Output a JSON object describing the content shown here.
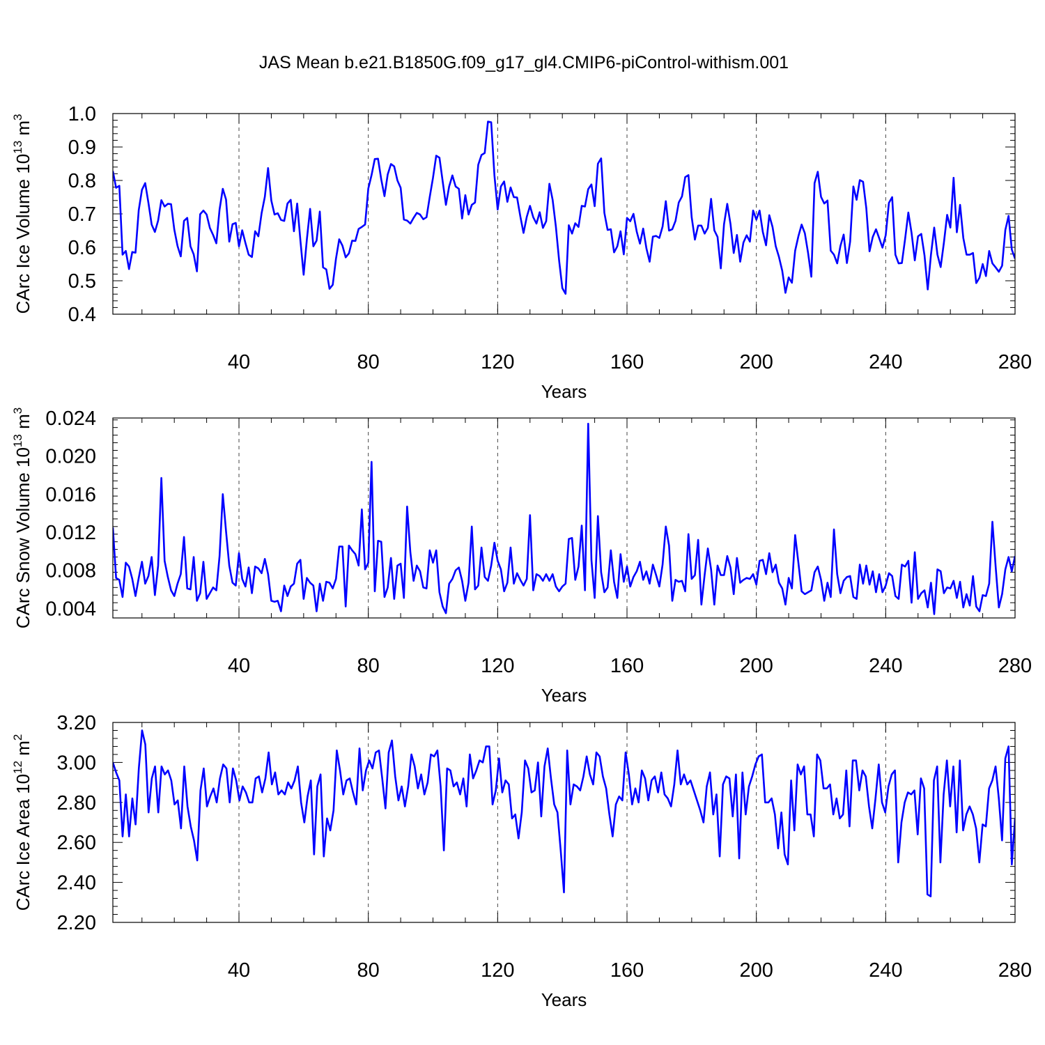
{
  "figure": {
    "title": "JAS Mean b.e21.B1850G.f09_g17_gl4.CMIP6-piControl-withism.001"
  },
  "chart_data": [
    {
      "type": "line",
      "title": "",
      "xlabel": "Years",
      "ylabel": "CArc Ice Volume 10",
      "ylabel_sup1": "13",
      "ylabel_unit": " m",
      "ylabel_sup2": "3",
      "xlim": [
        1,
        280
      ],
      "ylim": [
        0.4,
        1.0
      ],
      "x_ticks": [
        40,
        80,
        120,
        160,
        200,
        240,
        280
      ],
      "x_tick_labels": [
        "40",
        "80",
        "120",
        "160",
        "200",
        "240",
        "280"
      ],
      "y_ticks": [
        0.4,
        0.5,
        0.6,
        0.7,
        0.8,
        0.9,
        1.0
      ],
      "y_tick_labels": [
        "0.4",
        "0.5",
        "0.6",
        "0.7",
        "0.8",
        "0.9",
        "1.0"
      ],
      "grid": "vertical dashed at major x ticks",
      "color": "#0000ff",
      "values": [
        0.828,
        0.778,
        0.784,
        0.578,
        0.589,
        0.535,
        0.586,
        0.584,
        0.711,
        0.772,
        0.792,
        0.733,
        0.668,
        0.646,
        0.68,
        0.741,
        0.722,
        0.73,
        0.729,
        0.653,
        0.604,
        0.573,
        0.679,
        0.688,
        0.603,
        0.579,
        0.528,
        0.699,
        0.71,
        0.698,
        0.658,
        0.637,
        0.612,
        0.713,
        0.775,
        0.743,
        0.617,
        0.669,
        0.673,
        0.603,
        0.651,
        0.613,
        0.578,
        0.571,
        0.648,
        0.633,
        0.702,
        0.751,
        0.837,
        0.74,
        0.698,
        0.702,
        0.682,
        0.679,
        0.731,
        0.742,
        0.648,
        0.731,
        0.62,
        0.518,
        0.624,
        0.715,
        0.603,
        0.62,
        0.707,
        0.54,
        0.534,
        0.476,
        0.488,
        0.566,
        0.624,
        0.605,
        0.57,
        0.582,
        0.62,
        0.619,
        0.655,
        0.661,
        0.668,
        0.776,
        0.816,
        0.864,
        0.865,
        0.803,
        0.753,
        0.818,
        0.849,
        0.842,
        0.8,
        0.778,
        0.683,
        0.68,
        0.671,
        0.688,
        0.703,
        0.698,
        0.684,
        0.69,
        0.751,
        0.808,
        0.874,
        0.868,
        0.797,
        0.727,
        0.782,
        0.815,
        0.782,
        0.775,
        0.686,
        0.756,
        0.698,
        0.727,
        0.734,
        0.847,
        0.876,
        0.882,
        0.976,
        0.974,
        0.815,
        0.713,
        0.782,
        0.797,
        0.736,
        0.779,
        0.75,
        0.749,
        0.693,
        0.643,
        0.691,
        0.724,
        0.69,
        0.671,
        0.705,
        0.658,
        0.678,
        0.79,
        0.742,
        0.662,
        0.561,
        0.478,
        0.461,
        0.666,
        0.641,
        0.672,
        0.661,
        0.724,
        0.722,
        0.774,
        0.788,
        0.723,
        0.85,
        0.866,
        0.703,
        0.652,
        0.654,
        0.585,
        0.603,
        0.648,
        0.579,
        0.688,
        0.678,
        0.7,
        0.647,
        0.611,
        0.656,
        0.597,
        0.557,
        0.632,
        0.634,
        0.628,
        0.662,
        0.738,
        0.65,
        0.654,
        0.679,
        0.734,
        0.752,
        0.81,
        0.816,
        0.69,
        0.623,
        0.665,
        0.665,
        0.641,
        0.658,
        0.745,
        0.651,
        0.631,
        0.537,
        0.669,
        0.73,
        0.67,
        0.583,
        0.637,
        0.557,
        0.614,
        0.636,
        0.617,
        0.71,
        0.683,
        0.71,
        0.646,
        0.606,
        0.696,
        0.661,
        0.603,
        0.571,
        0.53,
        0.464,
        0.51,
        0.494,
        0.59,
        0.633,
        0.668,
        0.642,
        0.583,
        0.512,
        0.792,
        0.826,
        0.751,
        0.731,
        0.74,
        0.59,
        0.578,
        0.552,
        0.604,
        0.638,
        0.553,
        0.617,
        0.782,
        0.742,
        0.801,
        0.796,
        0.717,
        0.588,
        0.631,
        0.654,
        0.627,
        0.599,
        0.636,
        0.733,
        0.75,
        0.578,
        0.552,
        0.553,
        0.625,
        0.704,
        0.643,
        0.561,
        0.633,
        0.64,
        0.576,
        0.474,
        0.578,
        0.659,
        0.578,
        0.541,
        0.614,
        0.697,
        0.659,
        0.808,
        0.645,
        0.727,
        0.628,
        0.578,
        0.578,
        0.583,
        0.493,
        0.509,
        0.55,
        0.514,
        0.589,
        0.552,
        0.54,
        0.527,
        0.545,
        0.652,
        0.694,
        0.593,
        0.566
      ]
    },
    {
      "type": "line",
      "title": "",
      "xlabel": "Years",
      "ylabel": "CArc Snow Volume 10",
      "ylabel_sup1": "13",
      "ylabel_unit": " m",
      "ylabel_sup2": "3",
      "xlim": [
        1,
        280
      ],
      "ylim": [
        0.003,
        0.024
      ],
      "x_ticks": [
        40,
        80,
        120,
        160,
        200,
        240,
        280
      ],
      "x_tick_labels": [
        "40",
        "80",
        "120",
        "160",
        "200",
        "240",
        "280"
      ],
      "y_ticks": [
        0.004,
        0.008,
        0.012,
        0.016,
        0.02,
        0.024
      ],
      "y_tick_labels": [
        "0.004",
        "0.008",
        "0.012",
        "0.016",
        "0.020",
        "0.024"
      ],
      "grid": "vertical dashed at major x ticks",
      "color": "#0000ff",
      "values": [
        0.0125,
        0.0072,
        0.007,
        0.0052,
        0.0088,
        0.0084,
        0.0071,
        0.0053,
        0.0072,
        0.0089,
        0.0066,
        0.0074,
        0.0094,
        0.0054,
        0.0085,
        0.0177,
        0.009,
        0.0073,
        0.0059,
        0.0053,
        0.0066,
        0.0076,
        0.0115,
        0.0061,
        0.006,
        0.0094,
        0.0048,
        0.0056,
        0.0089,
        0.005,
        0.0056,
        0.0062,
        0.0059,
        0.0095,
        0.016,
        0.0121,
        0.0085,
        0.0067,
        0.0064,
        0.0098,
        0.0071,
        0.0063,
        0.0083,
        0.0056,
        0.0084,
        0.0082,
        0.0077,
        0.0092,
        0.0076,
        0.0048,
        0.0047,
        0.0048,
        0.0037,
        0.0064,
        0.0053,
        0.0063,
        0.0066,
        0.0087,
        0.0091,
        0.005,
        0.0072,
        0.0067,
        0.0064,
        0.0037,
        0.0066,
        0.0048,
        0.0068,
        0.0067,
        0.0061,
        0.0071,
        0.0105,
        0.0105,
        0.0042,
        0.0106,
        0.0101,
        0.0097,
        0.0085,
        0.0144,
        0.0081,
        0.0088,
        0.0194,
        0.0058,
        0.0111,
        0.011,
        0.0052,
        0.0062,
        0.0093,
        0.005,
        0.0085,
        0.0087,
        0.0051,
        0.0147,
        0.0099,
        0.0069,
        0.0085,
        0.0079,
        0.0062,
        0.0061,
        0.0101,
        0.0088,
        0.0101,
        0.0057,
        0.0042,
        0.0035,
        0.0066,
        0.0071,
        0.008,
        0.0083,
        0.0069,
        0.0048,
        0.0067,
        0.0126,
        0.006,
        0.0064,
        0.0104,
        0.0073,
        0.0069,
        0.0085,
        0.0109,
        0.009,
        0.0081,
        0.0058,
        0.0067,
        0.0104,
        0.0066,
        0.0077,
        0.007,
        0.0064,
        0.0071,
        0.0138,
        0.0059,
        0.0076,
        0.0074,
        0.0069,
        0.0076,
        0.0069,
        0.0076,
        0.0063,
        0.0058,
        0.0063,
        0.0066,
        0.0113,
        0.0114,
        0.007,
        0.0084,
        0.0127,
        0.0059,
        0.0234,
        0.0091,
        0.0051,
        0.0137,
        0.0078,
        0.0057,
        0.0062,
        0.0101,
        0.0068,
        0.0051,
        0.0097,
        0.0068,
        0.0084,
        0.0063,
        0.0073,
        0.0079,
        0.0089,
        0.007,
        0.0079,
        0.0066,
        0.0086,
        0.0075,
        0.0063,
        0.0086,
        0.0126,
        0.0106,
        0.0048,
        0.007,
        0.0068,
        0.0069,
        0.0058,
        0.0118,
        0.0071,
        0.0075,
        0.0112,
        0.0044,
        0.0075,
        0.0103,
        0.0081,
        0.0044,
        0.0085,
        0.0075,
        0.0075,
        0.0095,
        0.0083,
        0.0055,
        0.0093,
        0.0067,
        0.007,
        0.0072,
        0.0071,
        0.0076,
        0.0065,
        0.009,
        0.0091,
        0.0076,
        0.0098,
        0.0078,
        0.0086,
        0.0067,
        0.0061,
        0.0044,
        0.0072,
        0.0061,
        0.0117,
        0.0088,
        0.0058,
        0.0055,
        0.0057,
        0.0059,
        0.0078,
        0.0084,
        0.007,
        0.0048,
        0.0067,
        0.0052,
        0.0123,
        0.0076,
        0.0056,
        0.0069,
        0.0073,
        0.0074,
        0.0052,
        0.005,
        0.0086,
        0.0066,
        0.0085,
        0.0065,
        0.0079,
        0.0057,
        0.0076,
        0.0057,
        0.0064,
        0.0077,
        0.0074,
        0.0053,
        0.005,
        0.0086,
        0.0084,
        0.009,
        0.0046,
        0.0099,
        0.005,
        0.0056,
        0.0059,
        0.0041,
        0.0067,
        0.0034,
        0.0081,
        0.0079,
        0.0056,
        0.0062,
        0.0061,
        0.0069,
        0.0051,
        0.0068,
        0.0041,
        0.0055,
        0.0043,
        0.0074,
        0.0042,
        0.0037,
        0.0054,
        0.0053,
        0.0066,
        0.0131,
        0.0084,
        0.0041,
        0.0055,
        0.0081,
        0.0094,
        0.0079,
        0.0095
      ]
    },
    {
      "type": "line",
      "title": "",
      "xlabel": "Years",
      "ylabel": "CArc Ice Area 10",
      "ylabel_sup1": "12",
      "ylabel_unit": " m",
      "ylabel_sup2": "2",
      "xlim": [
        1,
        280
      ],
      "ylim": [
        2.2,
        3.2
      ],
      "x_ticks": [
        40,
        80,
        120,
        160,
        200,
        240,
        280
      ],
      "x_tick_labels": [
        "40",
        "80",
        "120",
        "160",
        "200",
        "240",
        "280"
      ],
      "y_ticks": [
        2.2,
        2.4,
        2.6,
        2.8,
        3.0,
        3.2
      ],
      "y_tick_labels": [
        "2.20",
        "2.40",
        "2.60",
        "2.80",
        "3.00",
        "3.20"
      ],
      "grid": "vertical dashed at major x ticks",
      "color": "#0000ff",
      "values": [
        3.0,
        2.95,
        2.91,
        2.63,
        2.84,
        2.63,
        2.82,
        2.69,
        2.97,
        3.16,
        3.09,
        2.75,
        2.92,
        2.98,
        2.75,
        2.98,
        2.94,
        2.96,
        2.91,
        2.79,
        2.81,
        2.67,
        2.98,
        2.78,
        2.68,
        2.61,
        2.51,
        2.86,
        2.97,
        2.78,
        2.83,
        2.87,
        2.8,
        2.92,
        2.99,
        2.97,
        2.8,
        2.97,
        2.91,
        2.81,
        2.88,
        2.85,
        2.8,
        2.8,
        2.92,
        2.93,
        2.85,
        2.92,
        3.05,
        2.89,
        2.95,
        2.84,
        2.86,
        2.84,
        2.9,
        2.87,
        2.91,
        2.98,
        2.8,
        2.7,
        2.83,
        2.91,
        2.54,
        2.88,
        2.94,
        2.53,
        2.72,
        2.66,
        2.76,
        3.06,
        2.96,
        2.84,
        2.91,
        2.92,
        2.85,
        2.79,
        3.07,
        2.86,
        2.96,
        3.01,
        2.97,
        3.05,
        3.06,
        2.92,
        2.77,
        3.05,
        3.11,
        2.93,
        2.81,
        2.88,
        2.78,
        2.88,
        3.04,
        2.98,
        2.87,
        2.94,
        2.84,
        2.9,
        3.04,
        3.03,
        3.06,
        2.88,
        2.56,
        2.97,
        2.96,
        2.88,
        2.9,
        2.84,
        2.92,
        2.78,
        3.04,
        2.92,
        2.96,
        3.01,
        3.0,
        3.08,
        3.08,
        2.79,
        2.86,
        3.02,
        2.85,
        2.91,
        2.89,
        2.72,
        2.74,
        2.62,
        2.75,
        3.01,
        2.97,
        2.85,
        2.86,
        3.0,
        2.73,
        2.98,
        3.07,
        2.92,
        2.79,
        2.75,
        2.56,
        2.35,
        3.06,
        2.79,
        2.89,
        2.88,
        2.86,
        2.93,
        3.03,
        2.94,
        2.89,
        3.05,
        3.03,
        2.93,
        2.87,
        2.74,
        2.63,
        2.79,
        2.83,
        2.81,
        3.05,
        2.94,
        2.79,
        2.87,
        2.8,
        2.96,
        2.92,
        2.81,
        2.91,
        2.93,
        2.85,
        2.95,
        2.84,
        2.82,
        2.78,
        2.89,
        3.06,
        2.89,
        2.94,
        2.89,
        2.91,
        2.86,
        2.81,
        2.76,
        2.7,
        2.88,
        2.95,
        2.74,
        2.84,
        2.53,
        2.89,
        2.93,
        2.92,
        2.73,
        2.94,
        2.52,
        2.95,
        2.74,
        2.88,
        2.93,
        2.99,
        3.03,
        3.04,
        2.8,
        2.8,
        2.82,
        2.74,
        2.57,
        2.75,
        2.54,
        2.49,
        2.91,
        2.66,
        2.99,
        2.94,
        2.98,
        2.74,
        2.74,
        2.63,
        3.04,
        3.01,
        2.87,
        2.87,
        2.89,
        2.74,
        2.82,
        2.72,
        2.74,
        2.96,
        2.68,
        3.01,
        3.01,
        2.86,
        2.96,
        2.93,
        2.78,
        2.67,
        2.82,
        2.99,
        2.8,
        2.75,
        2.88,
        2.94,
        2.96,
        2.5,
        2.7,
        2.8,
        2.85,
        2.84,
        2.86,
        2.64,
        2.92,
        2.87,
        2.34,
        2.33,
        2.91,
        2.98,
        2.5,
        2.84,
        3.01,
        2.78,
        2.98,
        2.65,
        3.01,
        2.66,
        2.74,
        2.78,
        2.74,
        2.67,
        2.5,
        2.69,
        2.68,
        2.87,
        2.91,
        2.98,
        2.82,
        2.61,
        3.02,
        3.08,
        2.49,
        2.72
      ]
    }
  ]
}
